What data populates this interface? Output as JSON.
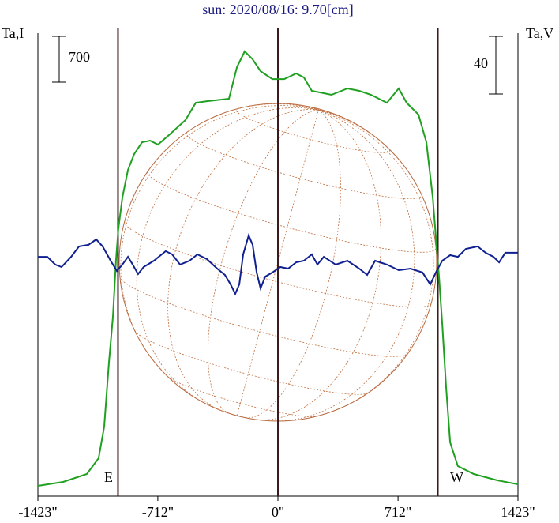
{
  "chart_data": {
    "type": "line",
    "title": "sun: 2020/08/16: 9.70[cm]",
    "ylabel": "Ta,I",
    "y2label": "Ta,V",
    "xlim": [
      -1423,
      1423
    ],
    "xticks": [
      {
        "value": -1423,
        "label": "-1423\""
      },
      {
        "value": -712,
        "label": "-712\""
      },
      {
        "value": 0,
        "label": "0\""
      },
      {
        "value": 712,
        "label": "712\""
      },
      {
        "value": 1423,
        "label": "1423\""
      }
    ],
    "ylim": [
      0,
      7073
    ],
    "y2lim": [
      -162.2,
      158.9
    ],
    "scale_bars": [
      {
        "value": 700,
        "axis": "y"
      },
      {
        "value": 40,
        "axis": "y2"
      }
    ],
    "vlines": [
      {
        "value": -948,
        "label": "E"
      },
      {
        "value": 0
      },
      {
        "value": 948,
        "label": "W"
      }
    ],
    "series": [
      {
        "color": "#20a020",
        "axis": "y",
        "x": [
          -1423,
          -1273,
          -1133,
          -1063,
          -1030,
          -1002,
          -978,
          -960,
          -946,
          -922,
          -889,
          -852,
          -805,
          -758,
          -711,
          -641,
          -548,
          -487,
          -421,
          -290,
          -243,
          -197,
          -150,
          -103,
          -33,
          37,
          108,
          154,
          201,
          318,
          412,
          482,
          552,
          646,
          716,
          763,
          833,
          880,
          918,
          936,
          955,
          974,
          997,
          1021,
          1067,
          1161,
          1301,
          1423
        ],
        "values": [
          157,
          217,
          338,
          579,
          1062,
          2028,
          2752,
          3597,
          4080,
          4562,
          4985,
          5226,
          5407,
          5431,
          5371,
          5528,
          5745,
          6010,
          6034,
          6071,
          6554,
          6795,
          6674,
          6493,
          6372,
          6372,
          6457,
          6397,
          6192,
          6131,
          6228,
          6192,
          6131,
          6010,
          6228,
          6010,
          5830,
          5407,
          4562,
          3959,
          3355,
          2631,
          1666,
          821,
          459,
          338,
          241,
          181
        ]
      },
      {
        "color": "#102090",
        "axis": "y2",
        "x": [
          -1423,
          -1367,
          -1320,
          -1283,
          -1226,
          -1179,
          -1123,
          -1077,
          -1039,
          -992,
          -955,
          -922,
          -889,
          -861,
          -829,
          -796,
          -735,
          -665,
          -627,
          -580,
          -524,
          -477,
          -421,
          -360,
          -314,
          -281,
          -253,
          -229,
          -206,
          -173,
          -150,
          -126,
          -103,
          -75,
          -33,
          14,
          61,
          108,
          154,
          201,
          234,
          272,
          342,
          412,
          482,
          529,
          576,
          646,
          716,
          786,
          857,
          903,
          936,
          974,
          1021,
          1067,
          1114,
          1184,
          1231,
          1278,
          1311,
          1348,
          1423
        ],
        "values": [
          3.8,
          3.8,
          -1.6,
          -3.3,
          3.8,
          11.0,
          12.1,
          15.9,
          11.0,
          1.1,
          -6.0,
          -1.6,
          3.8,
          -1.6,
          -8.2,
          -3.3,
          1.1,
          7.7,
          5.5,
          -1.6,
          1.1,
          5.5,
          2.2,
          -4.4,
          -8.8,
          -15.3,
          -21.9,
          -15.3,
          5.5,
          18.6,
          12.1,
          -7.1,
          -18.1,
          -9.9,
          -7.1,
          -3.3,
          -4.4,
          0,
          1.1,
          5.5,
          -1.6,
          3.8,
          -1.6,
          1.1,
          -4.4,
          -8.8,
          1.1,
          -1.6,
          -5.5,
          -4.4,
          -7.1,
          -15.3,
          -7.1,
          1.1,
          4.9,
          3.8,
          9.3,
          11.0,
          6.6,
          3.8,
          0,
          6.6,
          6.6
        ]
      }
    ]
  }
}
